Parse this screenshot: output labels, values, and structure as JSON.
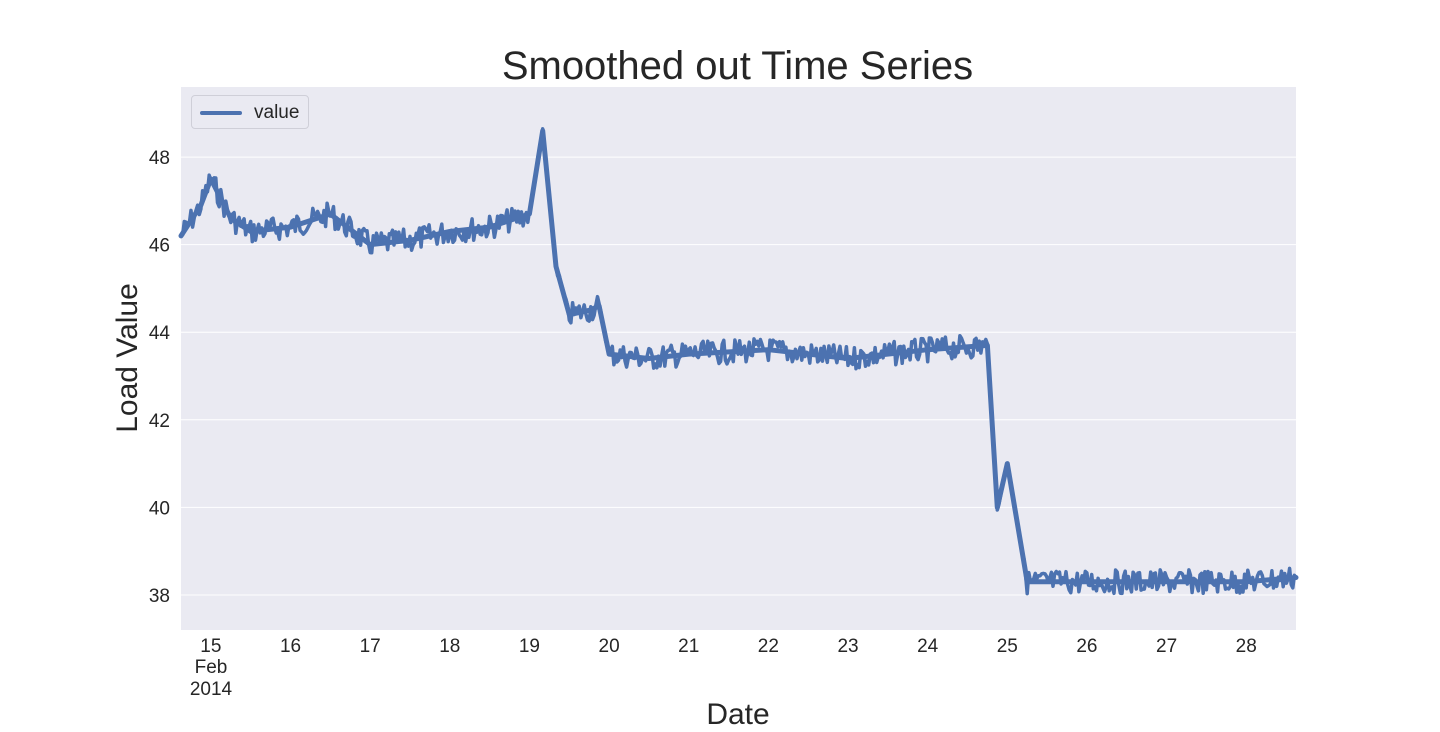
{
  "chart_data": {
    "type": "line",
    "title": "Smoothed out Time Series",
    "xlabel": "Date",
    "ylabel": "Load Value",
    "x_ticks": [
      "15",
      "16",
      "17",
      "18",
      "19",
      "20",
      "21",
      "22",
      "23",
      "24",
      "25",
      "26",
      "27",
      "28"
    ],
    "x_month_label": "Feb",
    "x_year_label": "2014",
    "x_range": [
      "2014-02-14 15:00",
      "2014-02-28 15:00"
    ],
    "y_ticks": [
      38,
      40,
      42,
      44,
      46,
      48
    ],
    "ylim": [
      37.2,
      49.6
    ],
    "grid": true,
    "legend_position": "upper-left",
    "series": [
      {
        "name": "value",
        "color": "#4c72b0",
        "x": [
          "2014-02-14 15:00",
          "2014-02-14 21:00",
          "2014-02-15 00:00",
          "2014-02-15 06:00",
          "2014-02-15 12:00",
          "2014-02-16 00:00",
          "2014-02-16 12:00",
          "2014-02-17 00:00",
          "2014-02-17 12:00",
          "2014-02-18 00:00",
          "2014-02-18 12:00",
          "2014-02-19 00:00",
          "2014-02-19 04:00",
          "2014-02-19 08:00",
          "2014-02-19 12:00",
          "2014-02-19 18:00",
          "2014-02-19 21:00",
          "2014-02-20 00:00",
          "2014-02-20 12:00",
          "2014-02-21 00:00",
          "2014-02-22 00:00",
          "2014-02-23 00:00",
          "2014-02-24 00:00",
          "2014-02-24 18:00",
          "2014-02-24 21:00",
          "2014-02-25 00:00",
          "2014-02-25 06:00",
          "2014-02-26 00:00",
          "2014-02-27 00:00",
          "2014-02-28 00:00",
          "2014-02-28 15:00"
        ],
        "values": [
          46.2,
          46.9,
          47.5,
          46.6,
          46.3,
          46.4,
          46.7,
          46.0,
          46.1,
          46.3,
          46.4,
          46.7,
          48.6,
          45.5,
          44.4,
          44.5,
          44.6,
          43.5,
          43.4,
          43.5,
          43.6,
          43.4,
          43.6,
          43.7,
          40.0,
          41.0,
          38.3,
          38.3,
          38.3,
          38.3,
          38.4
        ]
      }
    ]
  }
}
